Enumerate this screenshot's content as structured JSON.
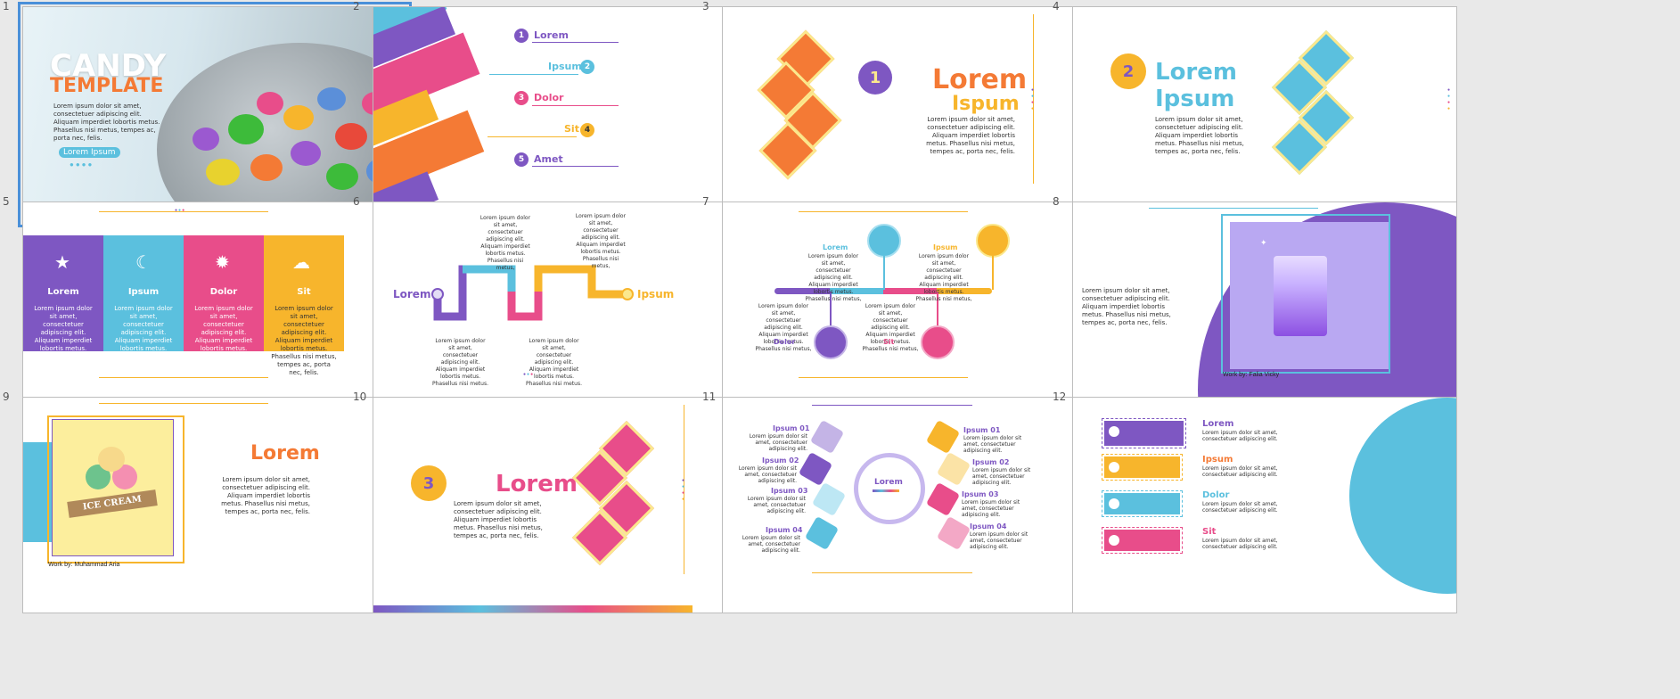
{
  "lorem": "Lorem ipsum dolor sit amet, consectetuer adipiscing elit. Aliquam imperdiet lobortis metus. Phasellus nisi metus, tempes ac, porta nec, felis.",
  "lorem_short": "Lorem ipsum dolor sit amet, consectetuer adipiscing elit.",
  "lorem_col": "Lorem ipsum dolor sit amet, consectetuer adipiscing elit. Aliquam imperdiet lobortis metus. Phasellus nisi metus,",
  "lorem_col2": "Lorem ipsum dolor sit amet, consectetuer adipiscing elit. Aliquam imperdiet lobortis metus. Phasellus nisi metus.",
  "colors": {
    "purple": "#7e57c2",
    "blue": "#5bc0de",
    "pink": "#e84d8a",
    "yellow": "#f7b52c",
    "orange": "#f47a35"
  },
  "slide_numbers": [
    "1",
    "2",
    "3",
    "4",
    "5",
    "6",
    "7",
    "8",
    "9",
    "10",
    "11",
    "12"
  ],
  "s1": {
    "title1": "CANDY",
    "title2": "TEMPLATE",
    "button": "Lorem Ipsum"
  },
  "s2": {
    "items": [
      {
        "n": "1",
        "t": "Lorem"
      },
      {
        "n": "2",
        "t": "Ipsum"
      },
      {
        "n": "3",
        "t": "Dolor"
      },
      {
        "n": "4",
        "t": "Sit"
      },
      {
        "n": "5",
        "t": "Amet"
      }
    ]
  },
  "s3": {
    "num": "1",
    "t1": "Lorem",
    "t2": "Ispum"
  },
  "s4": {
    "num": "2",
    "t1": "Lorem",
    "t2": "Ipsum"
  },
  "s5": {
    "cols": [
      {
        "t": "Lorem",
        "icon": "star-icon"
      },
      {
        "t": "Ipsum",
        "icon": "moon-icon"
      },
      {
        "t": "Dolor",
        "icon": "sun-icon"
      },
      {
        "t": "Sit",
        "icon": "cloud-icon"
      }
    ]
  },
  "s6": {
    "left": "Lorem",
    "right": "Ipsum"
  },
  "s7": {
    "labels": [
      "Lorem",
      "Ipsum",
      "Dolor",
      "Sit"
    ]
  },
  "s8": {
    "credit": "Work by: Falia Vicky"
  },
  "s9": {
    "title": "Lorem",
    "credit": "Work by: Muhammad Aria",
    "badge": "ICE CREAM"
  },
  "s10": {
    "num": "3",
    "title": "Lorem"
  },
  "s11": {
    "center": "Lorem",
    "left": [
      "Ipsum 01",
      "Ipsum 02",
      "Ipsum 03",
      "Ipsum 04"
    ],
    "right": [
      "Ipsum 01",
      "Ipsum 02",
      "Ipsum 03",
      "Ipsum 04"
    ]
  },
  "s12": {
    "items": [
      "Lorem",
      "Ipsum",
      "Dolor",
      "Sit"
    ]
  }
}
